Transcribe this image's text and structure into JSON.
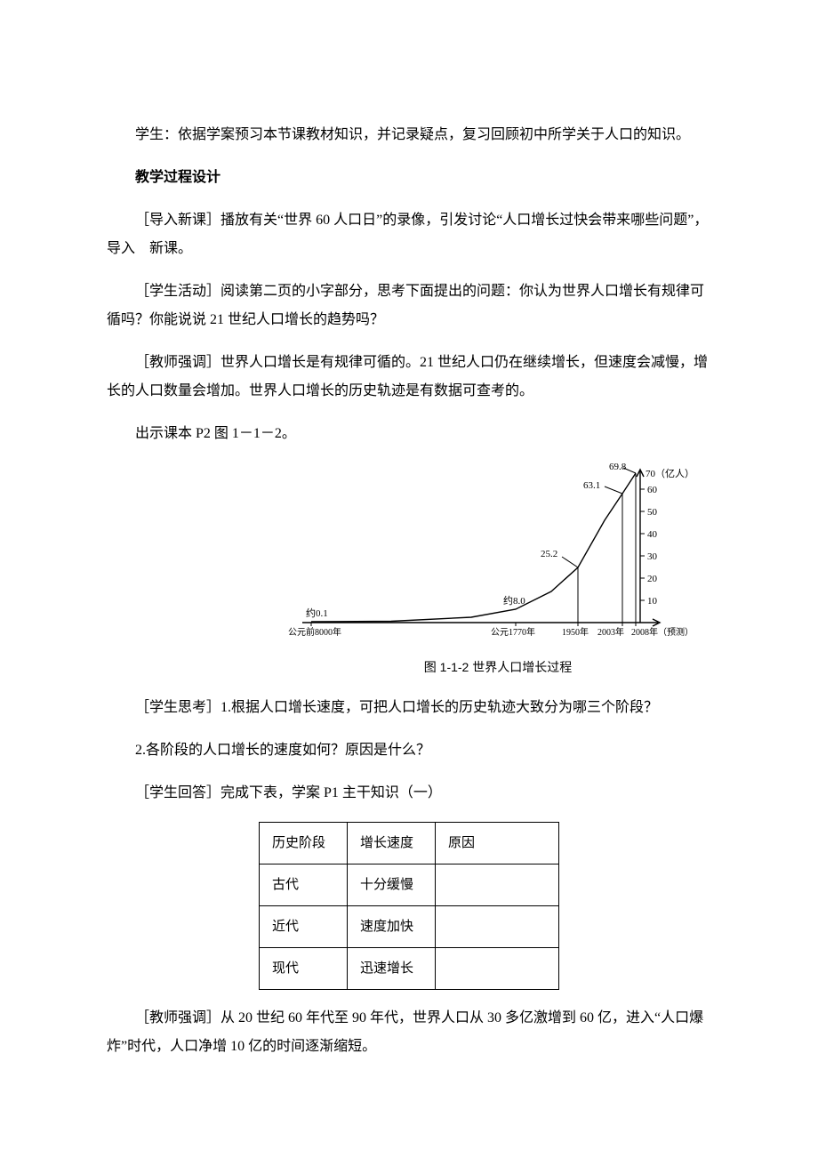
{
  "paragraphs": {
    "p1": "学生：依据学案预习本节课教材知识，并记录疑点，复习回顾初中所学关于人口的知识。",
    "p2": "教学过程设计",
    "p3": "［导入新课］播放有关“世界 60 人口日”的录像，引发讨论“人口增长过快会带来哪些问题”，导入　新课。",
    "p4": "［学生活动］阅读第二页的小字部分，思考下面提出的问题：你认为世界人口增长有规律可循吗？你能说说 21 世纪人口增长的趋势吗？",
    "p5": "［教师强调］世界人口增长是有规律可循的。21 世纪人口仍在继续增长，但速度会减慢，增长的人口数量会增加。世界人口增长的历史轨迹是有数据可查考的。",
    "p6": "出示课本 P2 图 1－1－2。",
    "p7": "［学生思考］1.根据人口增长速度，可把人口增长的历史轨迹大致分为哪三个阶段？",
    "p8": "2.各阶段的人口增长的速度如何？原因是什么？",
    "p9": "［学生回答］完成下表，学案 P1 主干知识（一）",
    "p10": "［教师强调］从 20 世纪 60 年代至 90 年代，世界人口从 30 多亿激增到 60 亿，进入“人口爆炸”时代，人口净增 10 亿的时间逐渐缩短。"
  },
  "chart": {
    "caption": "图 1-1-2  世界人口增长过程",
    "axis_unit_label": "70（亿人）",
    "x_labels": {
      "x0": "公元前8000年",
      "x1": "公元1770年",
      "x2": "1950年",
      "x3": "2003年",
      "x4": "2008年（预测）"
    },
    "point_labels": {
      "pl0": "约0.1",
      "pl1": "约8.0",
      "pl2": "25.2",
      "pl3": "63.1",
      "pl4": "69.8"
    },
    "y_ticks": [
      "10",
      "20",
      "30",
      "40",
      "50",
      "60"
    ],
    "curve_points": [
      {
        "x": 30,
        "y": 179
      },
      {
        "x": 120,
        "y": 178.5
      },
      {
        "x": 210,
        "y": 174
      },
      {
        "x": 260,
        "y": 165
      },
      {
        "x": 300,
        "y": 145
      },
      {
        "x": 330,
        "y": 118
      },
      {
        "x": 360,
        "y": 65
      },
      {
        "x": 380,
        "y": 35
      },
      {
        "x": 395,
        "y": 12
      }
    ],
    "y_axis_x": 400,
    "y_tick_positions": [
      155,
      130,
      105,
      80,
      55,
      30
    ],
    "drop_lines_x": [
      330,
      380,
      395
    ],
    "ref_points": {
      "p0": {
        "x": 30,
        "y": 179
      },
      "p1": {
        "x": 260,
        "y": 165
      },
      "p2": {
        "x": 330,
        "y": 118
      },
      "p3": {
        "x": 380,
        "y": 35
      },
      "p4": {
        "x": 395,
        "y": 12
      }
    },
    "colors": {
      "line": "#000000",
      "text": "#000000",
      "background": "#ffffff"
    },
    "stroke_width": 1.4
  },
  "table": {
    "header": [
      "历史阶段",
      "增长速度",
      "原因"
    ],
    "rows": [
      [
        "古代",
        "十分缓慢",
        ""
      ],
      [
        "近代",
        "速度加快",
        ""
      ],
      [
        "现代",
        "迅速增长",
        ""
      ]
    ]
  }
}
